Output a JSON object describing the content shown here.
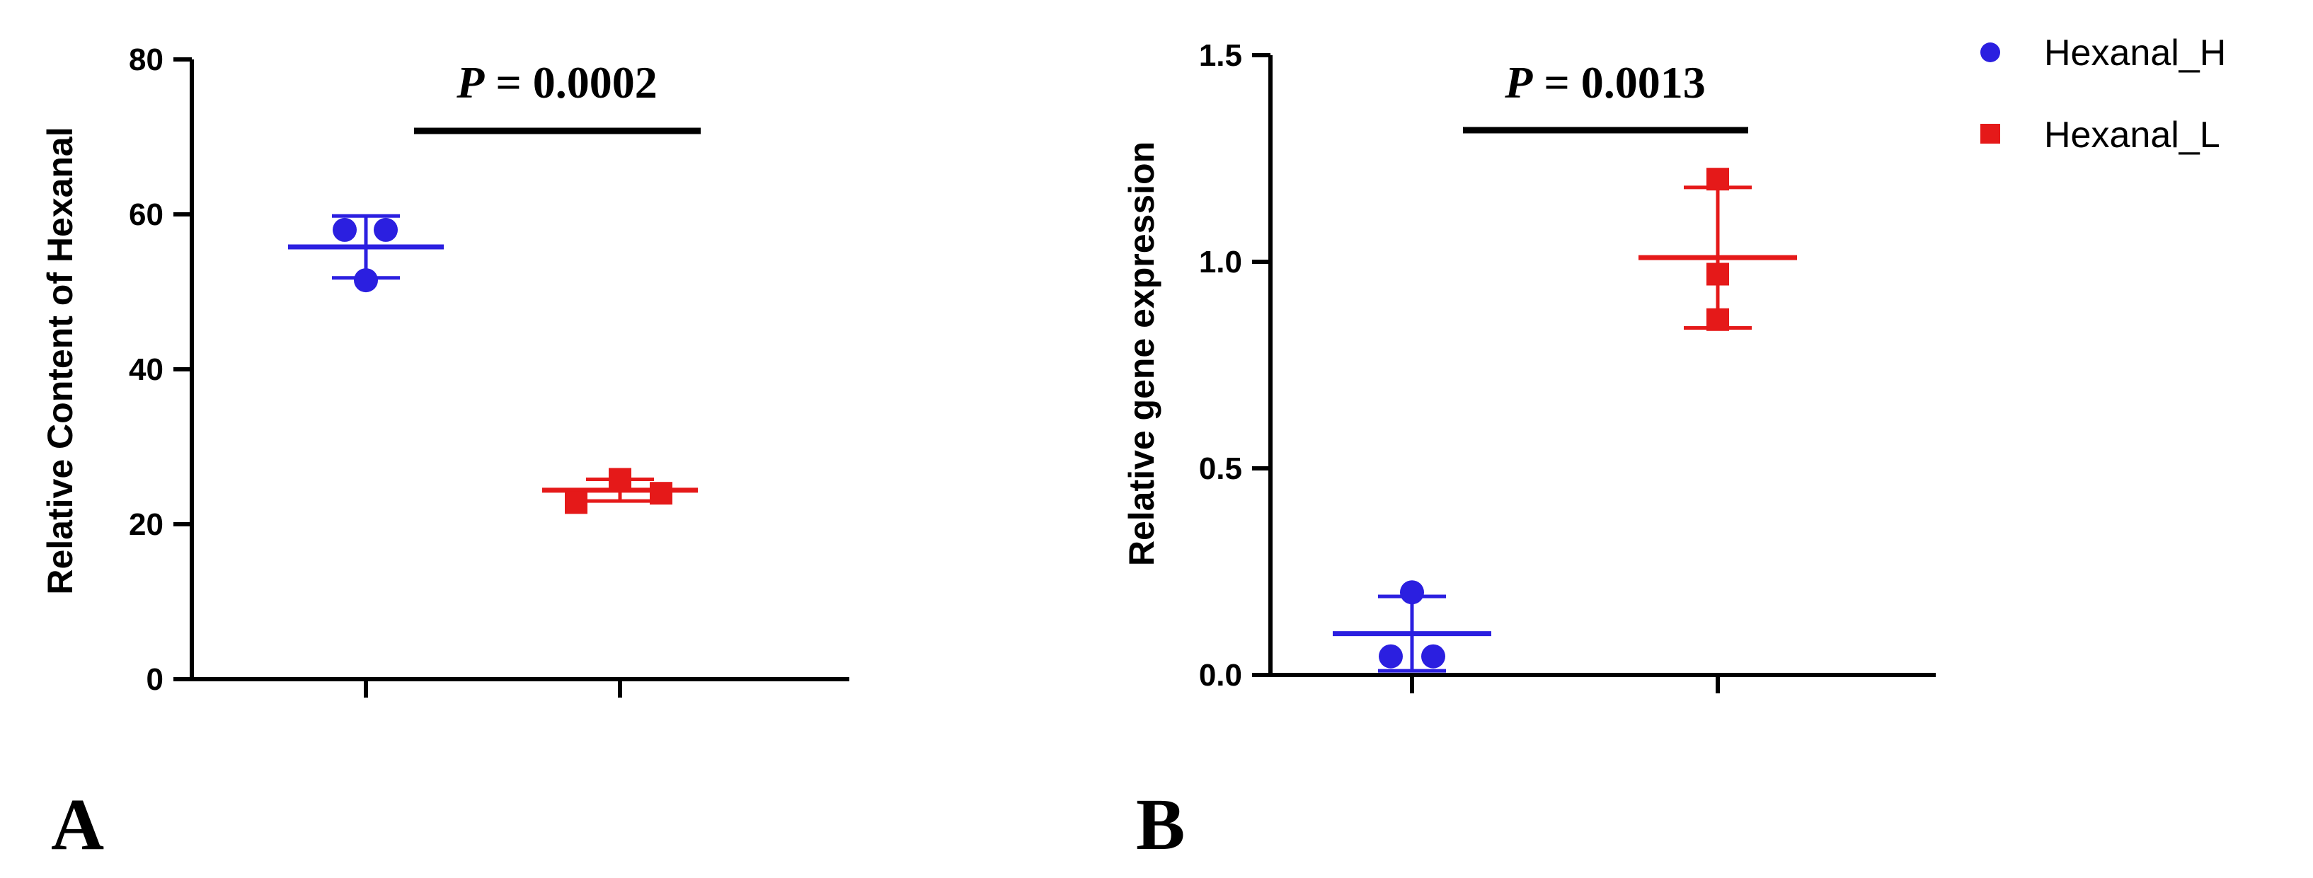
{
  "chart_data": [
    {
      "type": "scatter",
      "panel_label": "A",
      "title": "",
      "xlabel": "",
      "ylabel": "Relative  Content of Hexanal",
      "ylim": [
        0,
        80
      ],
      "yticks": [
        0,
        20,
        40,
        60,
        80
      ],
      "grid": false,
      "categories": [
        "Hexanal_H",
        "Hexanal_L"
      ],
      "series": [
        {
          "name": "Hexanal_H",
          "color": "#2b1fe0",
          "marker": "circle",
          "points": [
            {
              "x": 0,
              "y": 58.0
            },
            {
              "x": 0,
              "y": 58.0
            },
            {
              "x": 0,
              "y": 51.5
            }
          ],
          "mean": 55.8,
          "sd": 4.0
        },
        {
          "name": "Hexanal_L",
          "color": "#e51919",
          "marker": "square",
          "points": [
            {
              "x": 1,
              "y": 22.8
            },
            {
              "x": 1,
              "y": 25.8
            },
            {
              "x": 1,
              "y": 24.0
            }
          ],
          "mean": 24.4,
          "sd": 1.4
        }
      ],
      "annotation": {
        "p_symbol": "P",
        "p_rest": " = 0.0002"
      }
    },
    {
      "type": "scatter",
      "panel_label": "B",
      "title": "",
      "xlabel": "",
      "ylabel": "Relative gene expression",
      "ylim": [
        0,
        1.5
      ],
      "yticks": [
        "0.0",
        "0.5",
        "1.0",
        "1.5"
      ],
      "grid": false,
      "categories": [
        "Hexanal_H",
        "Hexanal_L"
      ],
      "series": [
        {
          "name": "Hexanal_H",
          "color": "#2b1fe0",
          "marker": "circle",
          "points": [
            {
              "x": 0,
              "y": 0.2
            },
            {
              "x": 0,
              "y": 0.045
            },
            {
              "x": 0,
              "y": 0.045
            }
          ],
          "mean": 0.1,
          "sd": 0.09
        },
        {
          "name": "Hexanal_L",
          "color": "#e51919",
          "marker": "square",
          "points": [
            {
              "x": 1,
              "y": 1.2
            },
            {
              "x": 1,
              "y": 0.97
            },
            {
              "x": 1,
              "y": 0.86
            }
          ],
          "mean": 1.01,
          "sd": 0.17
        }
      ],
      "annotation": {
        "p_symbol": "P",
        "p_rest": " = 0.0013"
      }
    }
  ],
  "legend": {
    "placement": "top-right",
    "items": [
      {
        "label": "Hexanal_H",
        "color": "#2b1fe0",
        "marker": "circle"
      },
      {
        "label": "Hexanal_L",
        "color": "#e51919",
        "marker": "square"
      }
    ]
  }
}
